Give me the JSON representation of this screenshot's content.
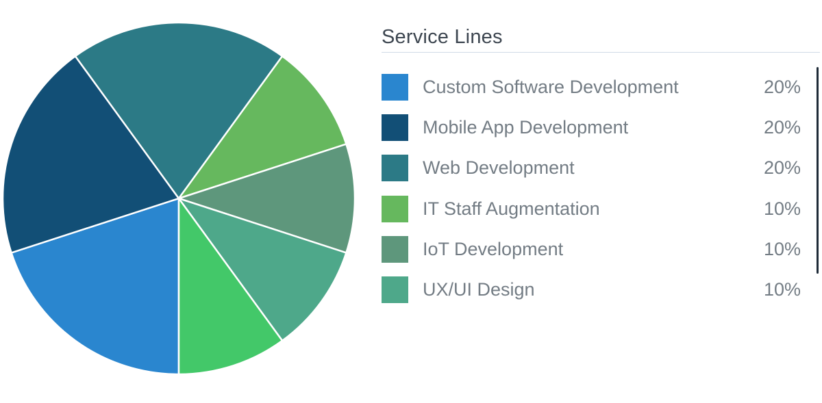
{
  "chart_data": {
    "type": "pie",
    "title": "Service Lines",
    "slices": [
      {
        "label": "Custom Software Development",
        "value": 20,
        "display": "20%",
        "color": "#2a86cf"
      },
      {
        "label": "Mobile App Development",
        "value": 20,
        "display": "20%",
        "color": "#124f76"
      },
      {
        "label": "Web Development",
        "value": 20,
        "display": "20%",
        "color": "#2c7a86"
      },
      {
        "label": "IT Staff Augmentation",
        "value": 10,
        "display": "10%",
        "color": "#66b85e"
      },
      {
        "label": "IoT Development",
        "value": 10,
        "display": "10%",
        "color": "#5e977c"
      },
      {
        "label": "UX/UI Design",
        "value": 10,
        "display": "10%",
        "color": "#4ea88a"
      },
      {
        "label": "",
        "value": 10,
        "display": "",
        "color": "#43c869"
      }
    ],
    "legend_position": "right",
    "legend_scrollable": true
  }
}
